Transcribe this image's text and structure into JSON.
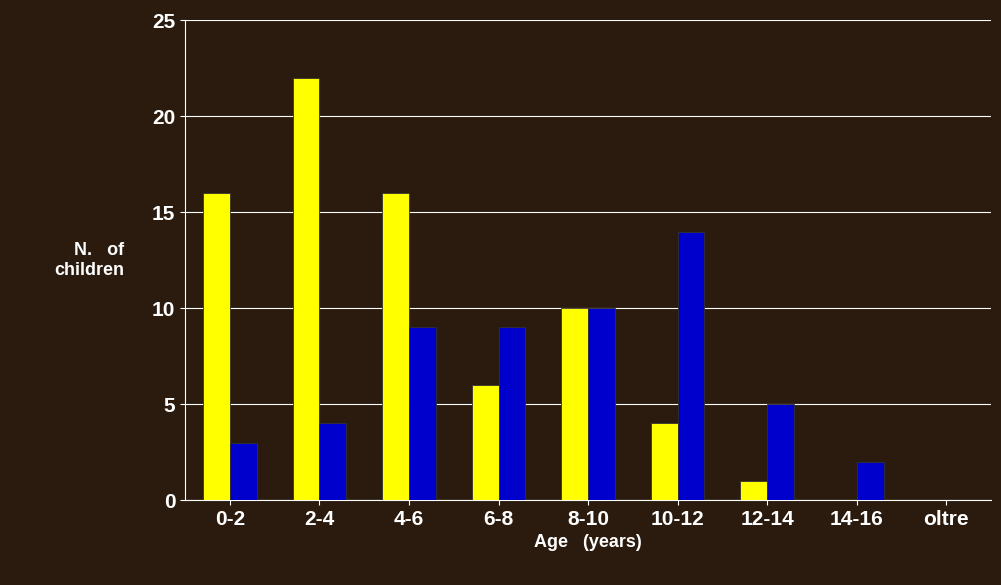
{
  "chart_data": {
    "type": "bar",
    "x_label": "Age   (years)",
    "y_label": "N.   of\nchildren",
    "categories": [
      "0-2",
      "2-4",
      "4-6",
      "6-8",
      "8-10",
      "10-12",
      "12-14",
      "14-16",
      "oltre"
    ],
    "series": [
      {
        "color": "#ffff00",
        "values": [
          16,
          22,
          16,
          6,
          10,
          4,
          1,
          0,
          0
        ]
      },
      {
        "color": "#0000cc",
        "values": [
          3,
          4,
          9,
          9,
          10,
          14,
          5,
          2,
          0
        ]
      }
    ],
    "ylim": [
      0,
      25
    ],
    "yticks": [
      0,
      5,
      10,
      15,
      20,
      25
    ],
    "grid": true
  }
}
